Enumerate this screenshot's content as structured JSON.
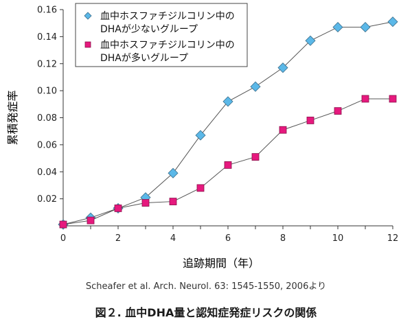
{
  "chart_data": {
    "type": "line",
    "x": [
      0,
      1,
      2,
      3,
      4,
      5,
      6,
      7,
      8,
      9,
      10,
      11,
      12
    ],
    "series": [
      {
        "name": "血中ホスファチジルコリン中のDHAが少ないグループ",
        "legend_lines": [
          "血中ホスファチジルコリン中の",
          "DHAが少ないグループ"
        ],
        "marker": "diamond",
        "color": "#5bb8e8",
        "values": [
          0.001,
          0.006,
          0.013,
          0.021,
          0.039,
          0.067,
          0.092,
          0.103,
          0.117,
          0.137,
          0.147,
          0.147,
          0.151
        ]
      },
      {
        "name": "血中ホスファチジルコリン中のDHAが多いグループ",
        "legend_lines": [
          "血中ホスファチジルコリン中の",
          "DHAが多いグループ"
        ],
        "marker": "square",
        "color": "#e6197e",
        "values": [
          0.001,
          0.004,
          0.013,
          0.017,
          0.018,
          0.028,
          0.045,
          0.051,
          0.071,
          0.078,
          0.085,
          0.094,
          0.094
        ]
      }
    ],
    "xlabel": "追跡期間（年）",
    "ylabel": "累積発症率",
    "xlim": [
      0,
      12
    ],
    "ylim": [
      0,
      0.16
    ],
    "x_ticks": [
      "0",
      "2",
      "4",
      "6",
      "8",
      "10",
      "12"
    ],
    "y_ticks": [
      "0.02",
      "0.04",
      "0.06",
      "0.08",
      "0.10",
      "0.12",
      "0.14",
      "0.16"
    ],
    "legend_position": "top-left",
    "grid": false,
    "line_color": "#555555"
  },
  "source": "Scheafer et al. Arch. Neurol. 63: 1545-1550, 2006より",
  "caption": "図２. 血中DHA量と認知症発症リスクの関係"
}
